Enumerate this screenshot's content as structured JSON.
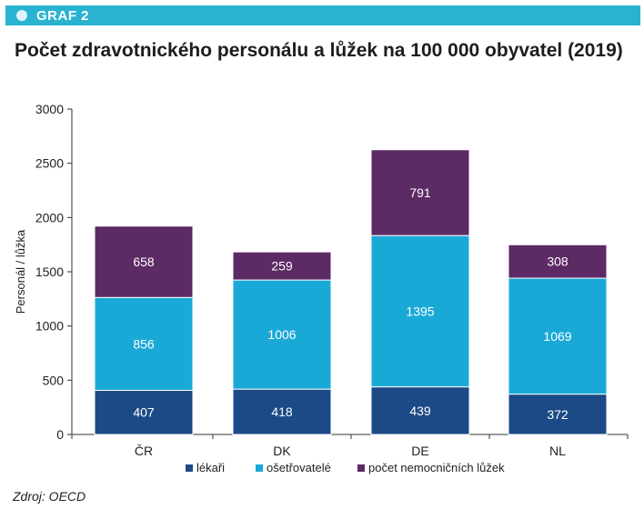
{
  "header": {
    "tag": "GRAF 2"
  },
  "title": "Počet zdravotnického personálu a lůžek na 100 000 obyvatel (2019)",
  "source": "Zdroj: OECD",
  "colors": {
    "banner": "#2ab3d0",
    "lekari": "#1c4a86",
    "osetrovatele": "#1aa9d6",
    "luzka": "#5c2a64"
  },
  "chart_data": {
    "type": "bar",
    "stacked": true,
    "categories": [
      "ČR",
      "DK",
      "DE",
      "NL"
    ],
    "series": [
      {
        "name": "lékaři",
        "values": [
          407,
          418,
          439,
          372
        ],
        "color": "#1c4a86"
      },
      {
        "name": "ošetřovatelé",
        "values": [
          856,
          1006,
          1395,
          1069
        ],
        "color": "#1aa9d6"
      },
      {
        "name": "počet nemocničních lůžek",
        "values": [
          658,
          259,
          791,
          308
        ],
        "color": "#5c2a64"
      }
    ],
    "ylabel": "Personál / lůžka",
    "ylim": [
      0,
      3000
    ],
    "yticks": [
      "0",
      "500",
      "1000",
      "1500",
      "2000",
      "2500",
      "3000"
    ],
    "grid": false,
    "legend": "bottom"
  }
}
